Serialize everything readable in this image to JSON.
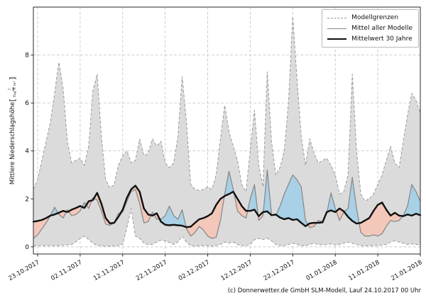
{
  "figure": {
    "ylabel_prefix": "Mittlere Niederschlagshöhe ",
    "ylabel_open": "[",
    "ylabel_frac_numerator": "l",
    "ylabel_frac_denominator": "Tag × m²",
    "ylabel_close": "]",
    "caption": "(c) Donnerwetter.de GmbH SLM-Modell, Lauf 24.10.2017 00 Uhr"
  },
  "legend": {
    "items": [
      {
        "label": "Modellgrenzen",
        "style": "dashed-gray"
      },
      {
        "label": "Mittel aller Modelle",
        "style": "solid-gray"
      },
      {
        "label": "Mittelwert 30 Jahre",
        "style": "solid-black-thick"
      }
    ]
  },
  "chart_data": {
    "type": "line",
    "title": "",
    "xlabel": "",
    "ylabel": "Mittlere Niederschlagshöhe [l/(Tag × m²)]",
    "grid": true,
    "legend_position": "upper right",
    "ylim": [
      -0.3,
      10.0
    ],
    "y_ticks": [
      0,
      2,
      4,
      6,
      8
    ],
    "x_tick_labels": [
      "23.10.2017",
      "02.11.2017",
      "12.11.2017",
      "22.11.2017",
      "02.12.2017",
      "12.12.2017",
      "22.12.2017",
      "01.01.2018",
      "11.01.2018",
      "21.01.2018"
    ],
    "x_tick_day_indices": [
      1,
      11,
      21,
      31,
      41,
      51,
      61,
      71,
      81,
      91
    ],
    "x_start_date": "22.10.2017",
    "x_step": "1 Tag",
    "colors": {
      "envelope_fill": "#dbdbdb",
      "envelope_border": "#9a9a9a",
      "model_mean_line": "#8a8a8a",
      "mean30_line": "#101010",
      "above_fill_blue": "#a8d0e6",
      "below_fill_pink": "#f3c7b9",
      "grid": "#c9c9c9"
    },
    "series": [
      {
        "name": "Modellgrenze oben",
        "values": [
          2.4,
          2.8,
          3.6,
          4.4,
          5.2,
          6.4,
          7.7,
          6.6,
          4.4,
          3.5,
          3.6,
          3.7,
          3.4,
          4.2,
          6.5,
          7.2,
          4.6,
          2.8,
          2.45,
          2.6,
          3.4,
          3.8,
          4.0,
          3.5,
          3.6,
          4.5,
          3.8,
          3.9,
          4.5,
          4.2,
          4.4,
          3.5,
          3.3,
          3.5,
          4.6,
          7.1,
          5.2,
          2.6,
          2.4,
          2.35,
          2.4,
          2.5,
          2.4,
          3.0,
          4.5,
          5.9,
          4.8,
          4.2,
          3.6,
          2.6,
          2.3,
          4.0,
          5.7,
          3.4,
          2.5,
          7.3,
          4.4,
          3.0,
          3.3,
          4.0,
          6.0,
          9.6,
          7.0,
          4.6,
          3.4,
          4.5,
          3.9,
          3.5,
          3.6,
          3.7,
          3.4,
          3.0,
          2.2,
          2.3,
          3.0,
          7.2,
          4.0,
          2.2,
          1.9,
          2.0,
          2.2,
          2.6,
          3.0,
          3.6,
          4.2,
          3.5,
          3.3,
          4.4,
          5.5,
          6.4,
          6.1,
          5.6
        ]
      },
      {
        "name": "Modellgrenze unten",
        "values": [
          0.05,
          0.05,
          0.05,
          0.05,
          0.05,
          0.05,
          0.05,
          0.06,
          0.08,
          0.1,
          0.2,
          0.35,
          0.45,
          0.3,
          0.15,
          0.06,
          0.04,
          0.03,
          0.03,
          0.04,
          0.05,
          0.1,
          0.8,
          1.6,
          0.45,
          0.35,
          0.15,
          0.1,
          0.1,
          0.2,
          0.28,
          0.25,
          0.18,
          0.1,
          0.2,
          0.45,
          0.2,
          0.05,
          0.03,
          0.05,
          0.05,
          0.05,
          0.03,
          0.05,
          0.1,
          0.2,
          0.15,
          0.2,
          0.1,
          0.05,
          0.05,
          0.1,
          0.3,
          0.35,
          0.3,
          0.35,
          0.25,
          0.1,
          0.05,
          0.05,
          0.1,
          0.15,
          0.1,
          0.05,
          0.05,
          0.1,
          0.15,
          0.1,
          0.08,
          0.1,
          0.12,
          0.08,
          0.1,
          0.15,
          0.2,
          0.15,
          0.1,
          0.05,
          0.04,
          0.05,
          0.05,
          0.06,
          0.08,
          0.1,
          0.2,
          0.25,
          0.2,
          0.15,
          0.1,
          0.12,
          0.1,
          0.08
        ]
      },
      {
        "name": "Mittel aller Modelle",
        "values": [
          0.35,
          0.5,
          0.75,
          1.0,
          1.3,
          1.65,
          1.35,
          1.2,
          1.55,
          1.3,
          1.35,
          1.5,
          1.85,
          1.6,
          2.05,
          1.95,
          1.5,
          0.95,
          0.9,
          1.0,
          1.4,
          1.45,
          1.9,
          2.3,
          2.4,
          1.8,
          1.0,
          1.05,
          1.45,
          1.15,
          1.15,
          1.3,
          1.7,
          1.3,
          1.15,
          1.55,
          0.75,
          0.45,
          0.6,
          0.85,
          0.7,
          0.45,
          0.35,
          0.4,
          1.1,
          2.2,
          3.15,
          2.4,
          1.5,
          1.3,
          1.2,
          2.0,
          2.6,
          1.1,
          1.3,
          3.2,
          1.35,
          1.3,
          1.7,
          2.2,
          2.6,
          3.0,
          2.8,
          2.5,
          1.1,
          0.8,
          0.85,
          1.1,
          1.05,
          1.4,
          2.25,
          1.6,
          1.1,
          1.45,
          1.6,
          2.9,
          1.6,
          0.6,
          0.45,
          0.45,
          0.5,
          0.45,
          0.55,
          0.85,
          1.1,
          1.05,
          1.1,
          1.3,
          1.7,
          2.6,
          2.3,
          1.9
        ]
      },
      {
        "name": "Mittelwert 30 Jahre",
        "values": [
          1.05,
          1.08,
          1.12,
          1.2,
          1.3,
          1.35,
          1.42,
          1.5,
          1.45,
          1.55,
          1.62,
          1.7,
          1.62,
          1.9,
          1.95,
          2.25,
          1.8,
          1.2,
          0.98,
          1.0,
          1.25,
          1.55,
          2.05,
          2.4,
          2.55,
          2.3,
          1.6,
          1.35,
          1.3,
          1.4,
          1.05,
          0.92,
          0.9,
          0.92,
          0.9,
          0.88,
          0.82,
          0.84,
          1.0,
          1.15,
          1.2,
          1.28,
          1.4,
          1.75,
          2.0,
          2.12,
          2.2,
          2.3,
          2.0,
          1.7,
          1.5,
          1.5,
          1.55,
          1.28,
          1.45,
          1.48,
          1.32,
          1.35,
          1.22,
          1.15,
          1.2,
          1.12,
          1.15,
          1.0,
          0.86,
          0.98,
          1.0,
          1.0,
          1.02,
          1.45,
          1.52,
          1.45,
          1.6,
          1.48,
          1.25,
          1.08,
          0.97,
          1.0,
          1.1,
          1.2,
          1.5,
          1.75,
          1.85,
          1.55,
          1.3,
          1.42,
          1.3,
          1.28,
          1.35,
          1.3,
          1.38,
          1.32
        ]
      }
    ]
  }
}
